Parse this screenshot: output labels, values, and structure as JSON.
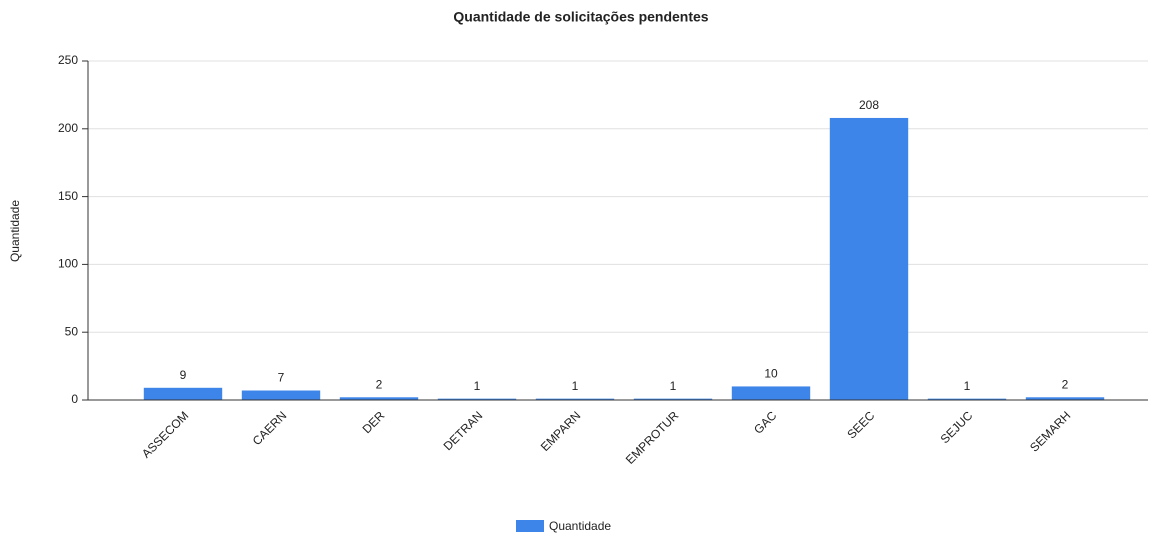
{
  "chart_data": {
    "type": "bar",
    "title": "Quantidade de solicitações pendentes",
    "y_label": "Quantidade",
    "categories": [
      "ASSECOM",
      "CAERN",
      "DER",
      "DETRAN",
      "EMPARN",
      "EMPROTUR",
      "GAC",
      "SEEC",
      "SEJUC",
      "SEMARH"
    ],
    "series": [
      {
        "name": "Quantidade",
        "color": "#3d85e8",
        "values": [
          9,
          7,
          2,
          1,
          1,
          1,
          10,
          208,
          1,
          2
        ]
      }
    ],
    "ylim": [
      0,
      250
    ],
    "yticks": [
      0,
      50,
      100,
      150,
      200,
      250
    ],
    "grid": true,
    "legend": "bottom"
  }
}
